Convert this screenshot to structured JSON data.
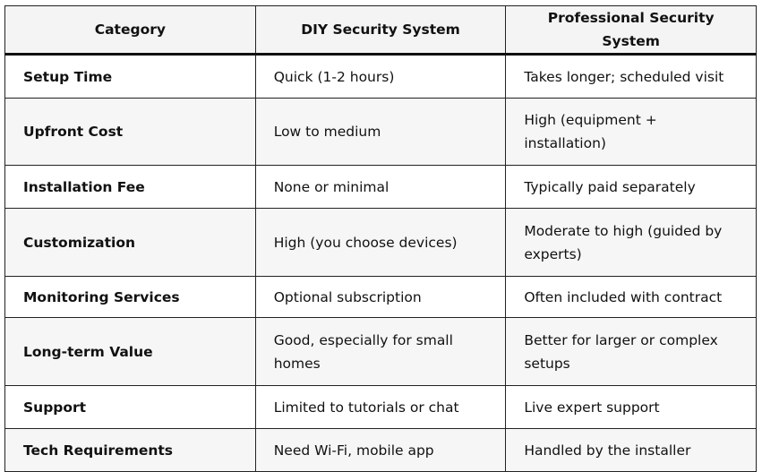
{
  "table": {
    "headers": [
      "Category",
      "DIY Security System",
      "Professional Security System"
    ],
    "rows": [
      [
        "Setup Time",
        "Quick (1-2 hours)",
        "Takes longer; scheduled visit"
      ],
      [
        "Upfront Cost",
        "Low to medium",
        "High (equipment + installation)"
      ],
      [
        "Installation Fee",
        "None or minimal",
        "Typically paid separately"
      ],
      [
        "Customization",
        "High (you choose devices)",
        "Moderate to high (guided by experts)"
      ],
      [
        "Monitoring Services",
        "Optional subscription",
        "Often included with contract"
      ],
      [
        "Long-term Value",
        "Good, especially for small homes",
        "Better for larger or complex setups"
      ],
      [
        "Support",
        "Limited to tutorials or chat",
        "Live expert support"
      ],
      [
        "Tech Requirements",
        "Need Wi-Fi, mobile app",
        "Handled by the installer"
      ]
    ]
  }
}
